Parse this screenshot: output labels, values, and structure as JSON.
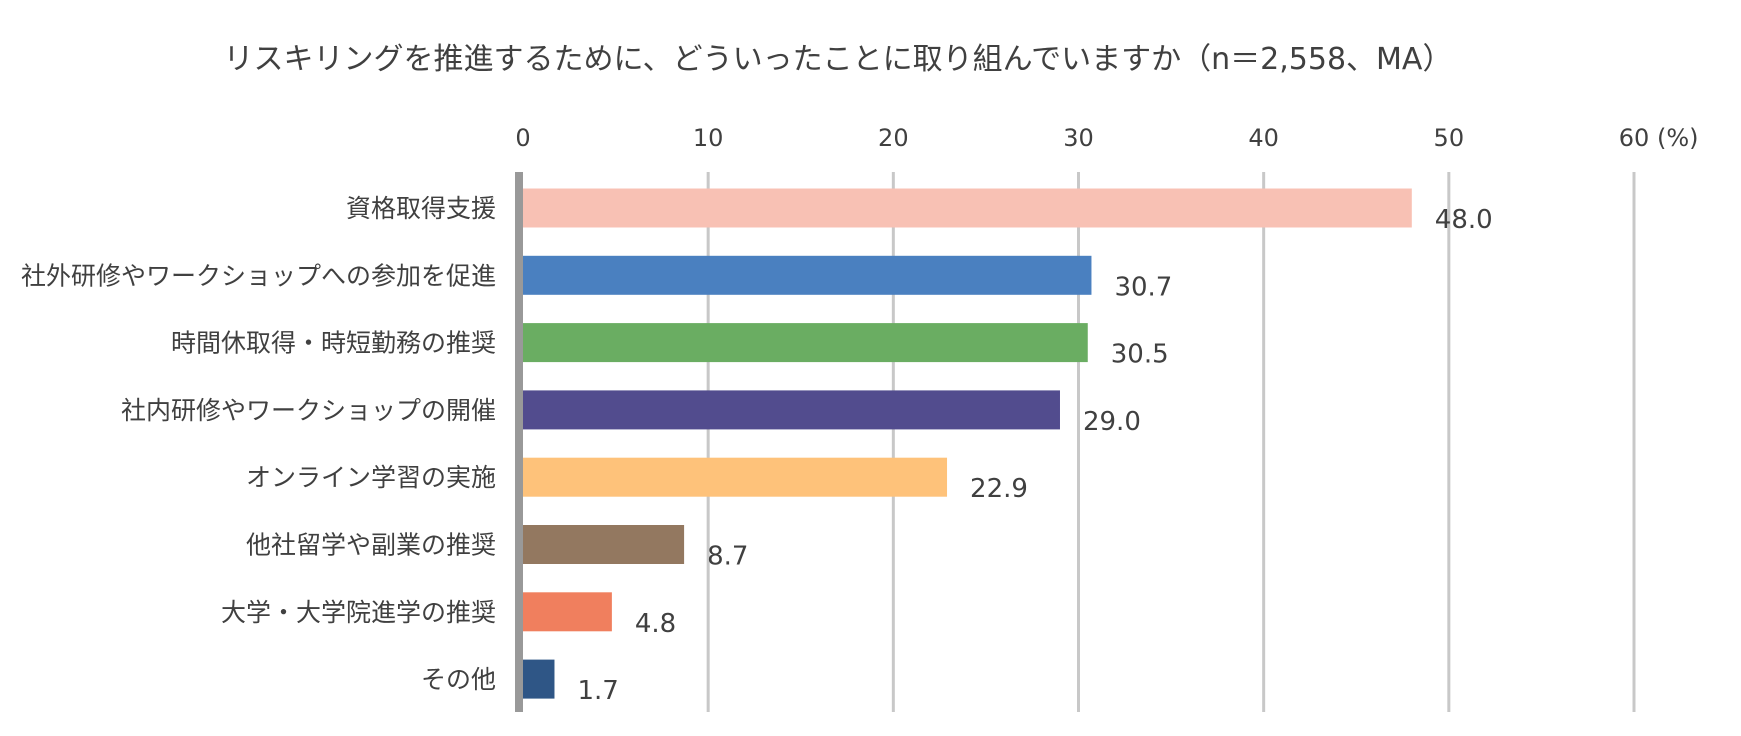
{
  "chart_data": {
    "type": "bar",
    "orientation": "horizontal",
    "title": "リスキリングを推進するために、どういったことに取り組んでいますか（n＝2,558、MA）",
    "xlabel": "",
    "ylabel": "",
    "unit": "(%)",
    "xlim": [
      0,
      60
    ],
    "ticks": [
      0,
      10,
      20,
      30,
      40,
      50,
      60
    ],
    "tick_labels": [
      "0",
      "10",
      "20",
      "30",
      "40",
      "50",
      "60"
    ],
    "grid": true,
    "legend": "none",
    "categories": [
      "資格取得支援",
      "社外研修やワークショップへの参加を促進",
      "時間休取得・時短勤務の推奨",
      "社内研修やワークショップの開催",
      "オンライン学習の実施",
      "他社留学や副業の推奨",
      "大学・大学院進学の推奨",
      "その他"
    ],
    "values": [
      48.0,
      30.7,
      30.5,
      29.0,
      22.9,
      8.7,
      4.8,
      1.7
    ],
    "value_labels": [
      "48.0",
      "30.7",
      "30.5",
      "29.0",
      "22.9",
      "8.7",
      "4.8",
      "1.7"
    ],
    "colors": [
      "#F8C1B4",
      "#4A80C0",
      "#6AAD62",
      "#524C8E",
      "#FEC27A",
      "#937860",
      "#F07F5E",
      "#2F5686"
    ],
    "gridline_color": "#C8C8C8",
    "axis_color": "#999999",
    "text_color": "#404040"
  }
}
